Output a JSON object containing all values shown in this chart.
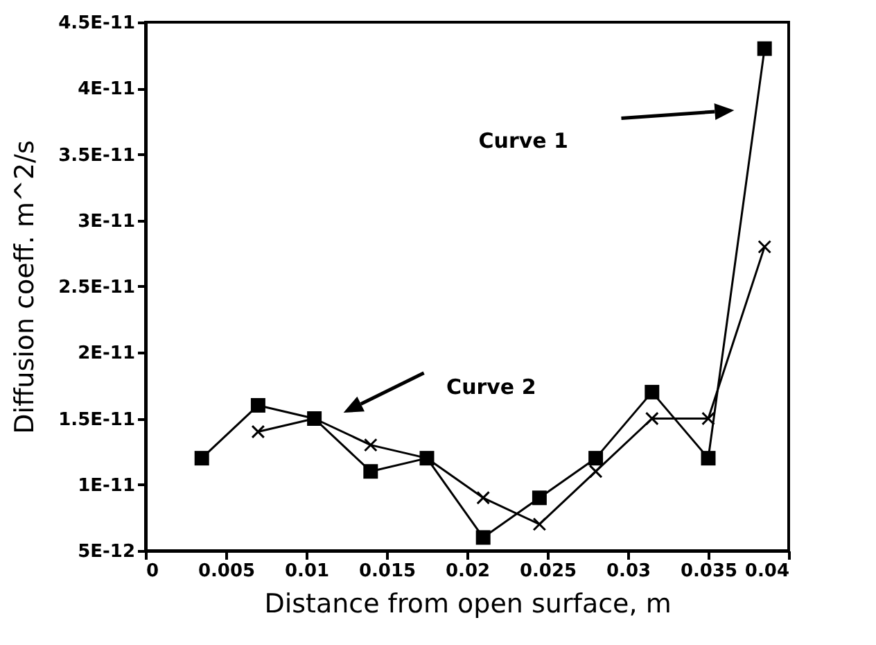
{
  "chart_data": {
    "type": "line",
    "xlabel": "Distance from open surface,  m",
    "ylabel": "Diffusion coeff.  m^2/s",
    "x": [
      0.0035,
      0.007,
      0.0105,
      0.014,
      0.0175,
      0.021,
      0.0245,
      0.028,
      0.0315,
      0.035,
      0.0385
    ],
    "series": [
      {
        "color": "#000000",
        "marker": "square",
        "values": [
          1.2e-11,
          1.6e-11,
          1.5e-11,
          1.1e-11,
          1.2e-11,
          6e-12,
          9e-12,
          1.2e-11,
          1.7e-11,
          1.2e-11,
          4.3e-11
        ]
      },
      {
        "color": "#000000",
        "marker": "cross",
        "x": [
          0.007,
          0.0105,
          0.014,
          0.0175,
          0.021,
          0.0245,
          0.028,
          0.0315,
          0.035,
          0.0385
        ],
        "values": [
          1.4e-11,
          1.5e-11,
          1.3e-11,
          1.2e-11,
          9e-12,
          7e-12,
          1.1e-11,
          1.5e-11,
          1.5e-11,
          2.8e-11
        ]
      }
    ],
    "annotations": [
      "Curve 1",
      "Curve 2"
    ],
    "xlim": [
      0,
      0.04
    ],
    "xticks": [
      0,
      0.005,
      0.01,
      0.015,
      0.02,
      0.025,
      0.03,
      0.035,
      0.04
    ],
    "ylim": [
      5e-12,
      4.5e-11
    ],
    "yticks": [
      {
        "value": 5e-12,
        "label": "5E-12"
      },
      {
        "value": 1e-11,
        "label": "1E-11"
      },
      {
        "value": 1.5e-11,
        "label": "1.5E-11"
      },
      {
        "value": 2e-11,
        "label": "2E-11"
      },
      {
        "value": 2.5e-11,
        "label": "2.5E-11"
      },
      {
        "value": 3e-11,
        "label": "3E-11"
      },
      {
        "value": 3.5e-11,
        "label": "3.5E-11"
      },
      {
        "value": 4e-11,
        "label": "4E-11"
      },
      {
        "value": 4.5e-11,
        "label": "4.5E-11"
      }
    ],
    "grid": false,
    "line_style": "solid"
  }
}
